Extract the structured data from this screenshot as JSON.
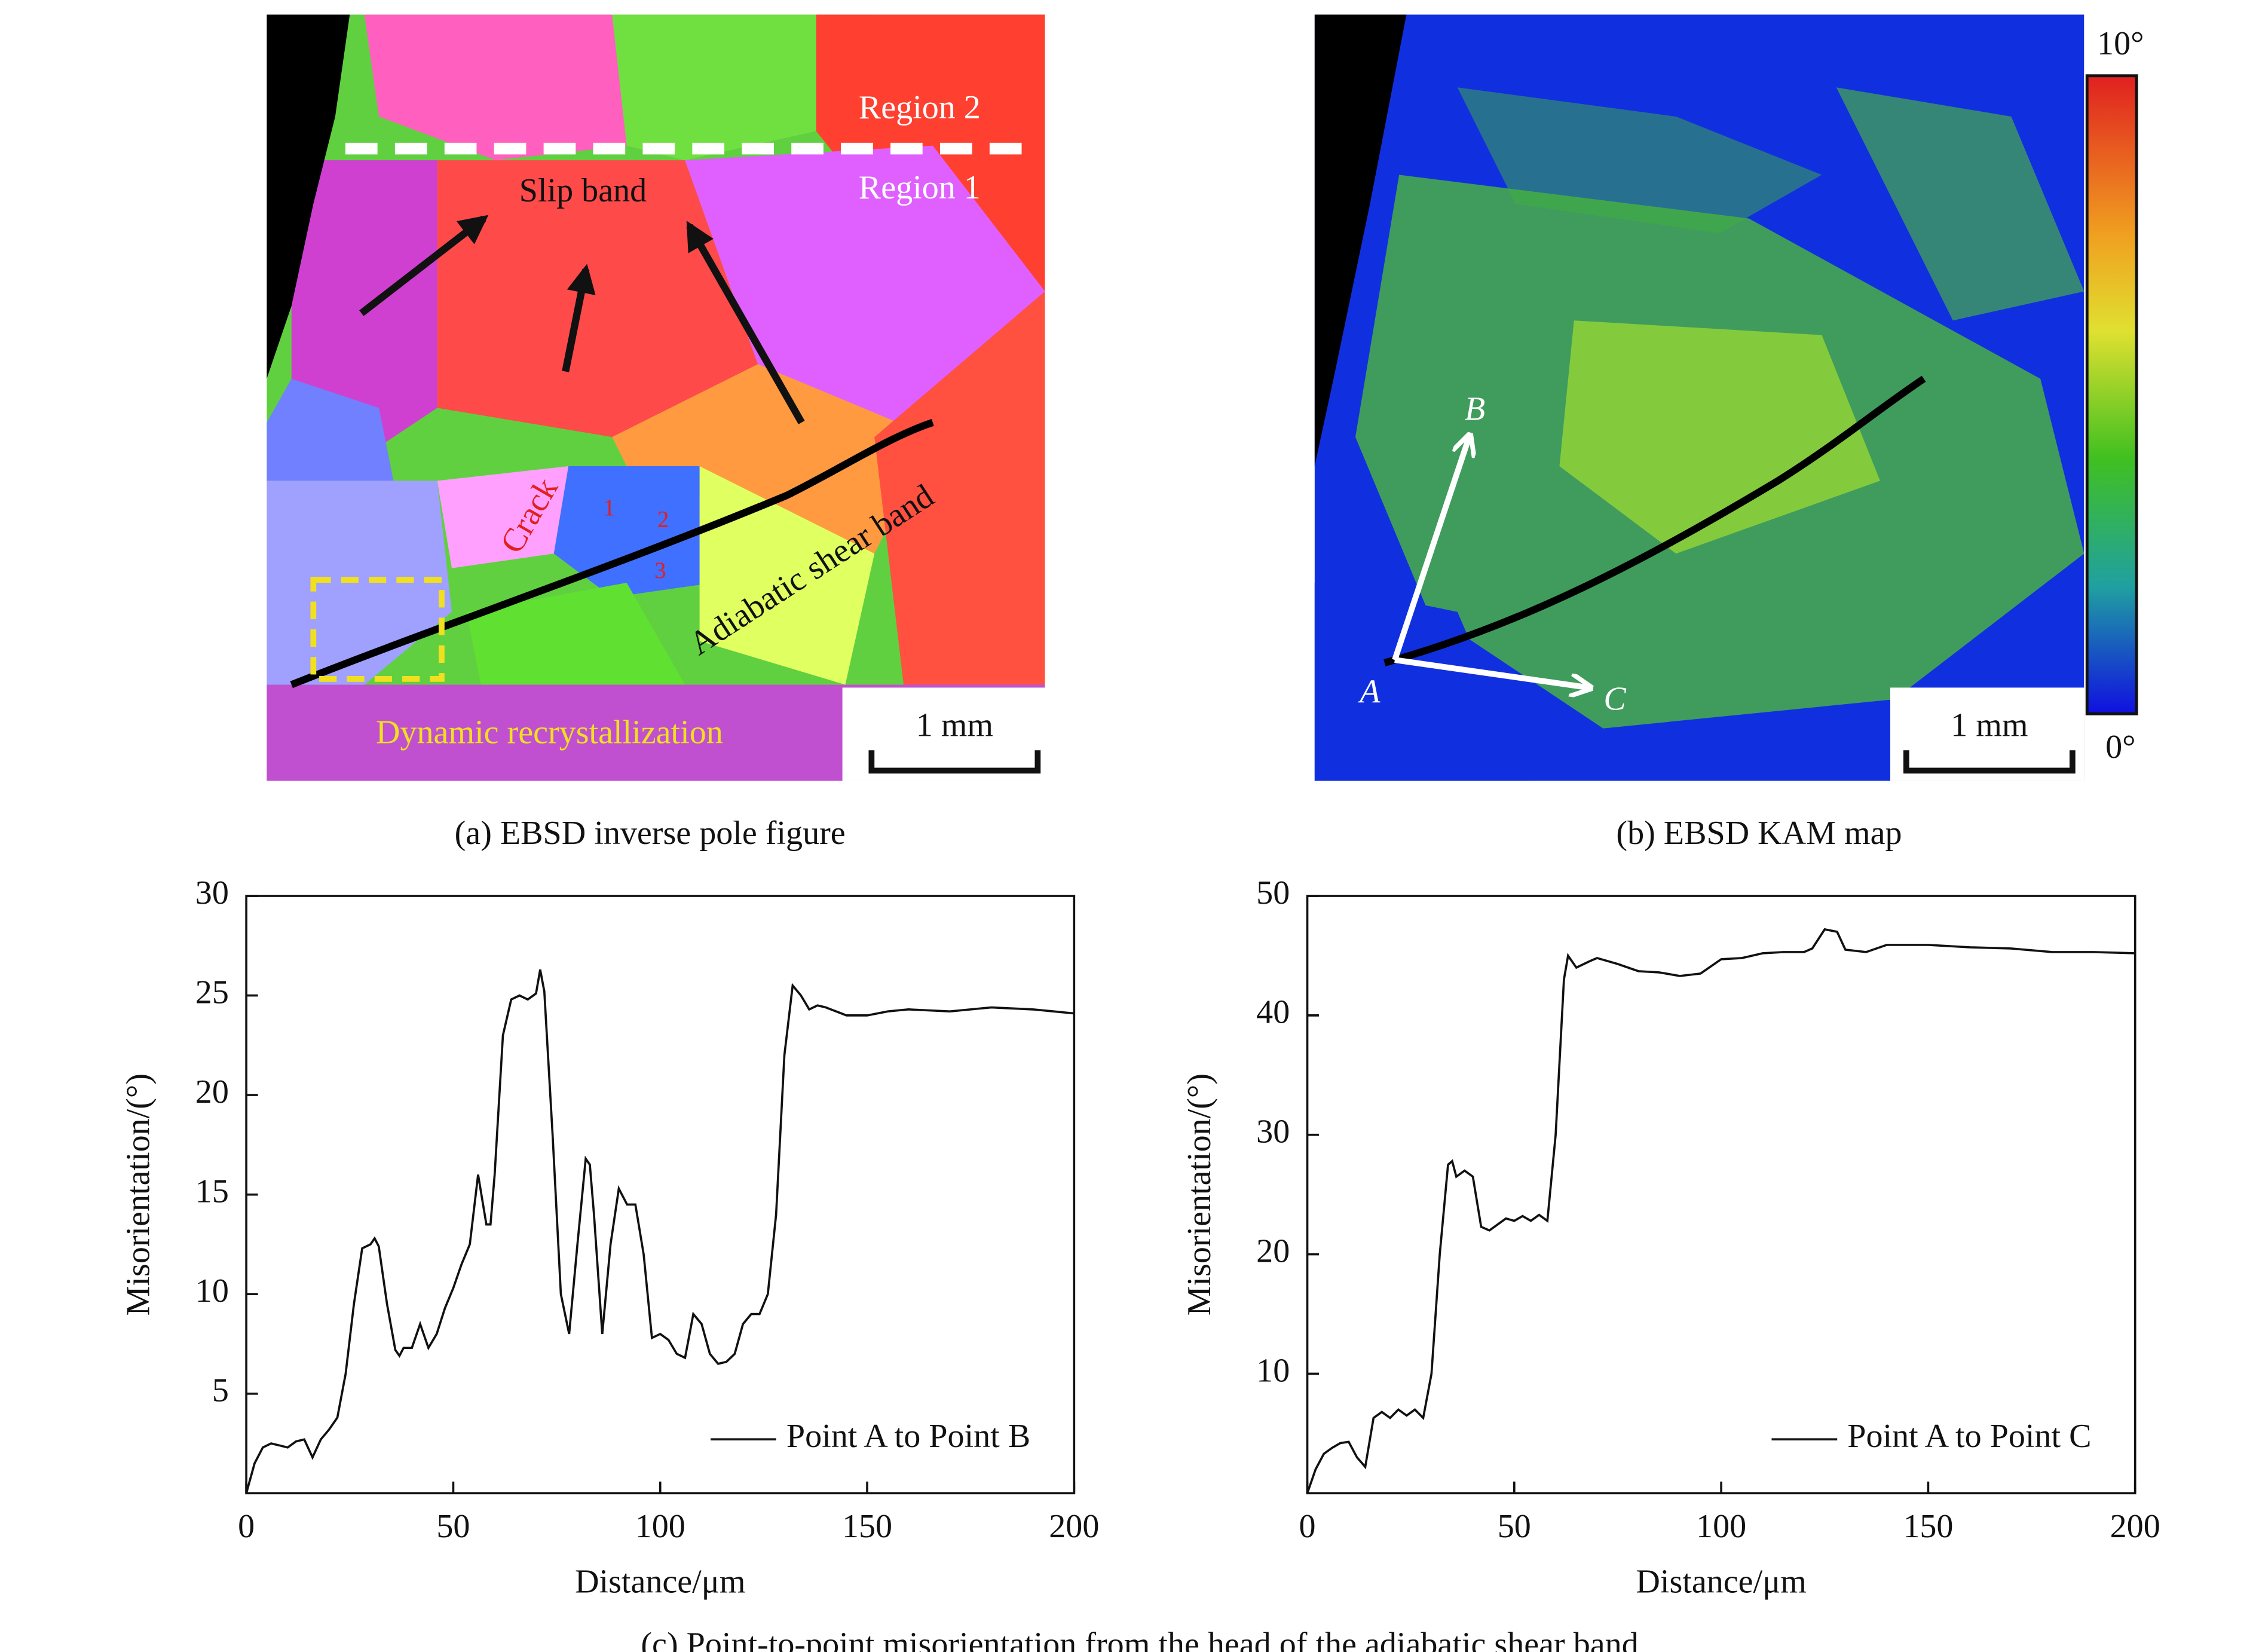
{
  "panels": [
    {
      "caption": "(a) EBSD inverse pole figure",
      "labels": [
        "Region 2",
        "Region 1",
        "Slip band",
        "Crack",
        "1",
        "2",
        "3",
        "Adiabatic shear band",
        "Dynamic recrystallization"
      ],
      "scale_bar": "1 mm"
    },
    {
      "caption": "(b) EBSD KAM map",
      "labels": [
        "A",
        "B",
        "C"
      ],
      "scale_bar": "1 mm",
      "colorbar": [
        "10°",
        "0°"
      ]
    }
  ],
  "chart_data": [
    {
      "type": "line",
      "xlabel": "Distance/μm",
      "ylabel": "Misorientation/(°)",
      "x": [
        0,
        2,
        4,
        6,
        8,
        10,
        12,
        14,
        16,
        18,
        20,
        22,
        24,
        26,
        28,
        30,
        31,
        32,
        34,
        36,
        37,
        38,
        40,
        42,
        44,
        46,
        48,
        50,
        52,
        54,
        56,
        58,
        59,
        60,
        62,
        64,
        66,
        68,
        70,
        71,
        72,
        74,
        76,
        78,
        80,
        82,
        83,
        84,
        86,
        88,
        90,
        92,
        94,
        96,
        98,
        100,
        102,
        104,
        106,
        108,
        110,
        112,
        114,
        116,
        118,
        120,
        122,
        124,
        126,
        128,
        130,
        132,
        134,
        136,
        138,
        140,
        145,
        150,
        155,
        160,
        170,
        180,
        190,
        200
      ],
      "series": [
        {
          "name": "Point A to Point B",
          "color": "#111111",
          "values": [
            0,
            1.5,
            2.3,
            2.5,
            2.4,
            2.3,
            2.6,
            2.7,
            1.8,
            2.7,
            3.2,
            3.8,
            6,
            9.5,
            12.3,
            12.5,
            12.8,
            12.4,
            9.5,
            7.2,
            6.9,
            7.3,
            7.3,
            8.5,
            7.3,
            8,
            9.3,
            10.3,
            11.5,
            12.5,
            16,
            13.5,
            13.5,
            16,
            23,
            24.8,
            25,
            24.8,
            25.1,
            26.3,
            25.2,
            18,
            10,
            8,
            12.5,
            16.8,
            16.5,
            14,
            8,
            12.5,
            15.3,
            14.5,
            14.5,
            12,
            7.8,
            8,
            7.7,
            7,
            6.8,
            9,
            8.5,
            7,
            6.5,
            6.6,
            7,
            8.5,
            9,
            9,
            10,
            14,
            22,
            25.5,
            25,
            24.3,
            24.5,
            24.4,
            24,
            24,
            24.2,
            24.3,
            24.2,
            24.4,
            24.3,
            24.1
          ]
        }
      ],
      "xlim": [
        0,
        200
      ],
      "xticks": [
        0,
        50,
        100,
        150,
        200
      ],
      "ylim": [
        0,
        30
      ],
      "yticks": [
        5,
        10,
        15,
        20,
        25,
        30
      ]
    },
    {
      "type": "line",
      "xlabel": "Distance/μm",
      "ylabel": "Misorientation/(°)",
      "x": [
        0,
        2,
        4,
        6,
        8,
        10,
        12,
        14,
        16,
        18,
        20,
        22,
        24,
        26,
        28,
        30,
        32,
        34,
        35,
        36,
        38,
        40,
        42,
        44,
        46,
        48,
        50,
        52,
        54,
        56,
        58,
        60,
        62,
        63,
        65,
        68,
        70,
        75,
        80,
        85,
        90,
        95,
        100,
        105,
        110,
        115,
        120,
        122,
        125,
        128,
        130,
        135,
        140,
        150,
        160,
        170,
        180,
        190,
        200
      ],
      "series": [
        {
          "name": "Point A to Point C",
          "color": "#111111",
          "values": [
            0,
            2,
            3.3,
            3.8,
            4.2,
            4.3,
            3,
            2.2,
            6.3,
            6.8,
            6.3,
            7,
            6.5,
            7,
            6.3,
            10,
            20,
            27.5,
            27.8,
            26.5,
            27,
            26.5,
            22.3,
            22,
            22.5,
            23,
            22.8,
            23.2,
            22.8,
            23.3,
            22.8,
            30,
            43,
            45,
            44,
            44.5,
            44.8,
            44.3,
            43.7,
            43.6,
            43.3,
            43.5,
            44.7,
            44.8,
            45.2,
            45.3,
            45.3,
            45.6,
            47.2,
            47,
            45.5,
            45.3,
            45.9,
            45.9,
            45.7,
            45.6,
            45.3,
            45.3,
            45.2
          ]
        }
      ],
      "xlim": [
        0,
        200
      ],
      "xticks": [
        0,
        50,
        100,
        150,
        200
      ],
      "ylim": [
        0,
        50
      ],
      "yticks": [
        10,
        20,
        30,
        40,
        50
      ]
    }
  ],
  "caption": "(c) Point-to-point misorientation from the head of the adiabatic shear band"
}
